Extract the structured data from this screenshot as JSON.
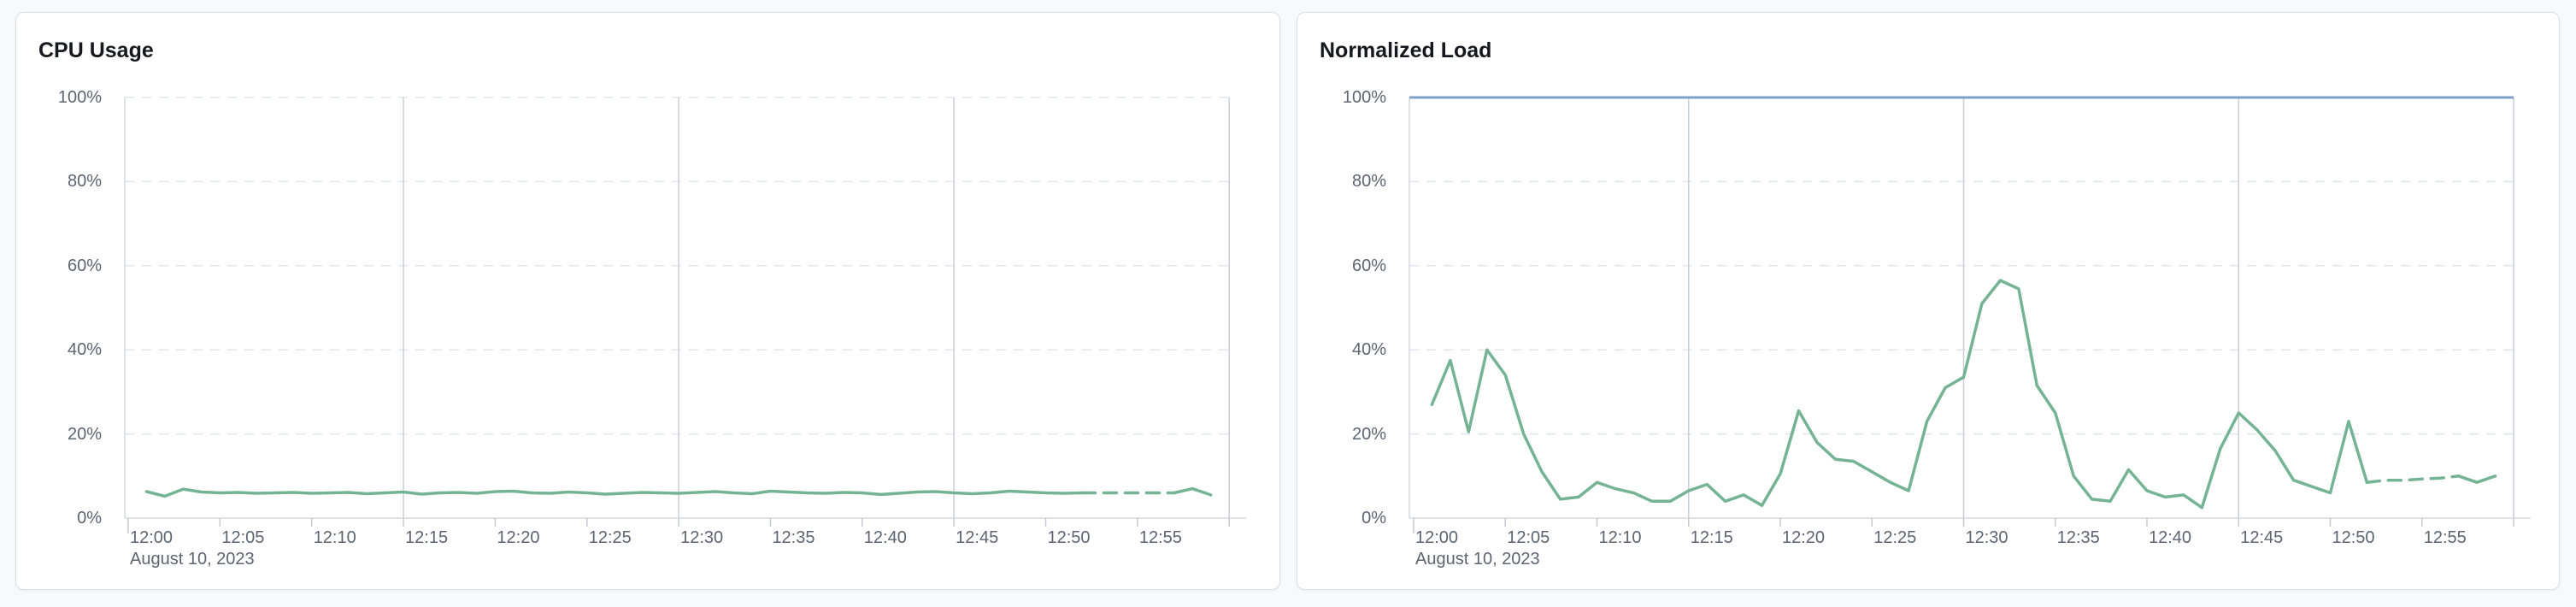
{
  "charts": [
    {
      "title": "CPU Usage",
      "date_label": "August 10, 2023",
      "y_tick_labels": [
        "100%",
        "80%",
        "60%",
        "40%",
        "20%",
        "0%"
      ],
      "x_tick_labels": [
        "12:00",
        "12:05",
        "12:10",
        "12:15",
        "12:20",
        "12:25",
        "12:30",
        "12:35",
        "12:40",
        "12:45",
        "12:50",
        "12:55"
      ]
    },
    {
      "title": "Normalized Load",
      "date_label": "August 10, 2023",
      "y_tick_labels": [
        "100%",
        "80%",
        "60%",
        "40%",
        "20%",
        "0%"
      ],
      "x_tick_labels": [
        "12:00",
        "12:05",
        "12:10",
        "12:15",
        "12:20",
        "12:25",
        "12:30",
        "12:35",
        "12:40",
        "12:45",
        "12:50",
        "12:55"
      ]
    }
  ],
  "chart_data": [
    {
      "type": "line",
      "title": "CPU Usage",
      "unit": "%",
      "ylabel": "",
      "xlabel": "August 10, 2023",
      "ylim": [
        0,
        100
      ],
      "y_ticks": [
        0,
        20,
        40,
        60,
        80,
        100
      ],
      "x_axis": {
        "start": "12:00",
        "end": "13:00",
        "tick_interval_min": 5,
        "major_gridlines": [
          "12:15",
          "12:30",
          "12:45",
          "13:00"
        ],
        "date": "August 10, 2023"
      },
      "first_sample": "12:01",
      "sample_interval_min": 1,
      "color": "#74b495",
      "values": [
        6.3,
        5.2,
        6.9,
        6.2,
        6.0,
        6.1,
        5.9,
        6.0,
        6.1,
        5.9,
        6.0,
        6.1,
        5.8,
        6.0,
        6.2,
        5.7,
        6.0,
        6.1,
        5.9,
        6.3,
        6.4,
        6.0,
        5.9,
        6.2,
        6.0,
        5.7,
        5.9,
        6.1,
        6.0,
        5.9,
        6.1,
        6.3,
        6.0,
        5.8,
        6.4,
        6.2,
        6.0,
        5.9,
        6.1,
        6.0,
        5.6,
        5.9,
        6.2,
        6.3,
        6.0,
        5.8,
        6.0,
        6.4,
        6.2,
        6.0,
        5.9,
        6.0,
        6.0,
        6.0,
        6.0,
        6.0,
        6.0,
        7.0,
        5.5
      ],
      "segments": [
        {
          "from": 0,
          "to": 51,
          "style": "solid"
        },
        {
          "from": 51,
          "to": 56,
          "style": "dashed"
        },
        {
          "from": 56,
          "to": 58,
          "style": "solid"
        }
      ]
    },
    {
      "type": "line",
      "title": "Normalized Load",
      "unit": "%",
      "ylabel": "",
      "xlabel": "August 10, 2023",
      "ylim": [
        0,
        100
      ],
      "y_ticks": [
        0,
        20,
        40,
        60,
        80,
        100
      ],
      "x_axis": {
        "start": "12:00",
        "end": "13:00",
        "tick_interval_min": 5,
        "major_gridlines": [
          "12:15",
          "12:30",
          "12:45",
          "13:00"
        ],
        "date": "August 10, 2023"
      },
      "first_sample": "12:01",
      "sample_interval_min": 1,
      "color": "#74b495",
      "threshold": {
        "value": 100,
        "color": "#7f9fc9"
      },
      "values": [
        27,
        37.5,
        20.5,
        40,
        34,
        20,
        11,
        4.5,
        5,
        8.5,
        7,
        6,
        4,
        4,
        6.5,
        8,
        4,
        5.5,
        3,
        10.5,
        25.5,
        18,
        14,
        13.5,
        11,
        8.5,
        6.5,
        23,
        31,
        33.5,
        51,
        56.5,
        54.5,
        31.5,
        25,
        10,
        4.5,
        4,
        11.5,
        6.5,
        5,
        5.5,
        2.5,
        16.5,
        25,
        21,
        16,
        9,
        7.5,
        6,
        23,
        8.5,
        9,
        9,
        9.3,
        9.5,
        10,
        8.5,
        10
      ],
      "segments": [
        {
          "from": 0,
          "to": 51,
          "style": "solid"
        },
        {
          "from": 51,
          "to": 56,
          "style": "dashed"
        },
        {
          "from": 56,
          "to": 58,
          "style": "solid"
        }
      ]
    }
  ]
}
